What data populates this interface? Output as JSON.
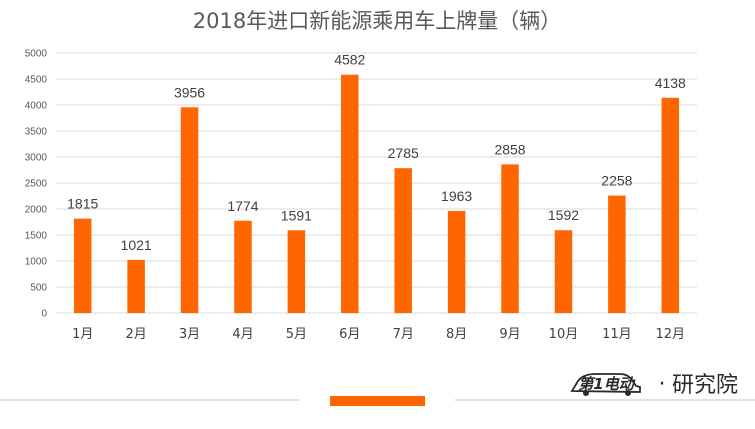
{
  "chart_data": {
    "type": "bar",
    "title": "2018年进口新能源乘用车上牌量（辆）",
    "categories": [
      "1月",
      "2月",
      "3月",
      "4月",
      "5月",
      "6月",
      "7月",
      "8月",
      "9月",
      "10月",
      "11月",
      "12月"
    ],
    "values": [
      1815,
      1021,
      3956,
      1774,
      1591,
      4582,
      2785,
      1963,
      2858,
      1592,
      2258,
      4138
    ],
    "y_ticks": [
      "0",
      "500",
      "1000",
      "1500",
      "2000",
      "2500",
      "3000",
      "3500",
      "4000",
      "4500",
      "5000"
    ],
    "ylim": [
      0,
      5000
    ],
    "xlabel": "",
    "ylabel": "",
    "bar_color": "#FF6600",
    "grid": true,
    "legend": "none"
  },
  "footer": {
    "brand_logo_text": "第1电动",
    "brand_separator": "·",
    "brand_suffix": "研究院",
    "accent_color": "#FF6600"
  }
}
